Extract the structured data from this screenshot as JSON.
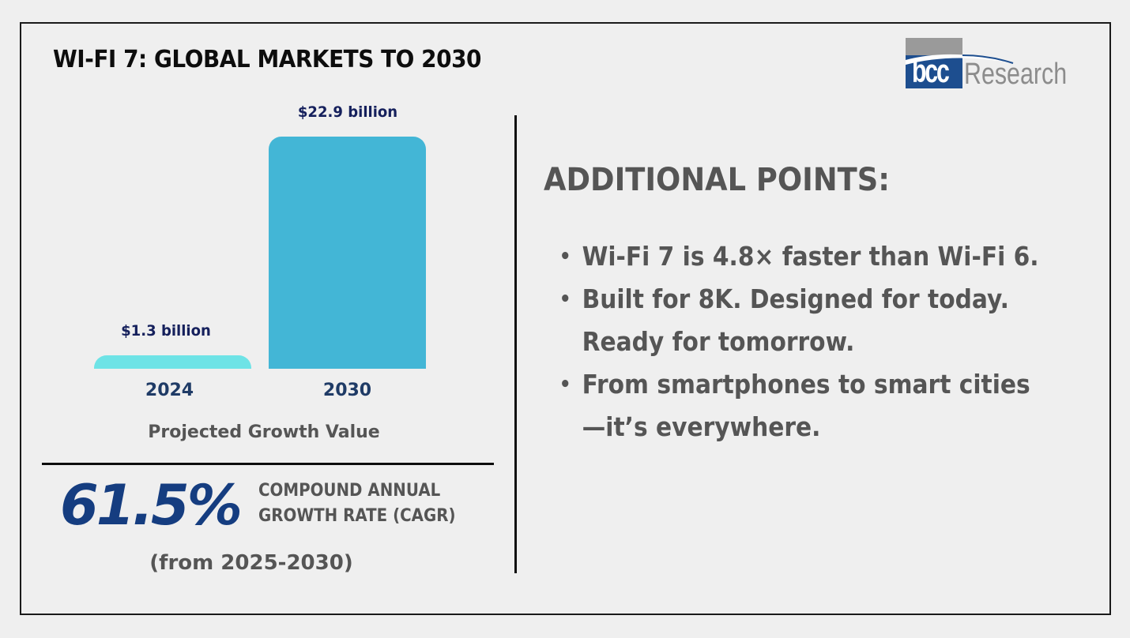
{
  "header": {
    "title": "WI-FI 7: GLOBAL MARKETS TO 2030",
    "logo": {
      "mark": "bcc",
      "wordmark": "Research",
      "colors": {
        "blue": "#1d4e8f",
        "grey": "#9a9a9a"
      }
    }
  },
  "chart_data": {
    "type": "bar",
    "title": "",
    "xlabel": "Projected Growth Value",
    "ylabel": "",
    "ylim": [
      0,
      22.9
    ],
    "unit": "USD billion",
    "categories": [
      "2024",
      "2030"
    ],
    "values": [
      1.3,
      22.9
    ],
    "data_labels": [
      "$1.3 billion",
      "$22.9 billion"
    ],
    "colors": [
      "#6ee3e6",
      "#43b6d6"
    ],
    "grid": false,
    "legend": "none"
  },
  "cagr": {
    "value": "61.5%",
    "label_line1": "COMPOUND ANNUAL",
    "label_line2": "GROWTH RATE (CAGR)",
    "period": "(from 2025-2030)",
    "color": "#153d80"
  },
  "additional_points": {
    "heading": "ADDITIONAL POINTS:",
    "items": [
      {
        "line1": "Wi-Fi 7 is 4.8× faster than Wi-Fi 6.",
        "line2": ""
      },
      {
        "line1": "Built for 8K. Designed for today.",
        "line2": "Ready for tomorrow."
      },
      {
        "line1": "From smartphones to smart cities",
        "line2": "—it’s everywhere."
      }
    ],
    "bullet": "•"
  }
}
